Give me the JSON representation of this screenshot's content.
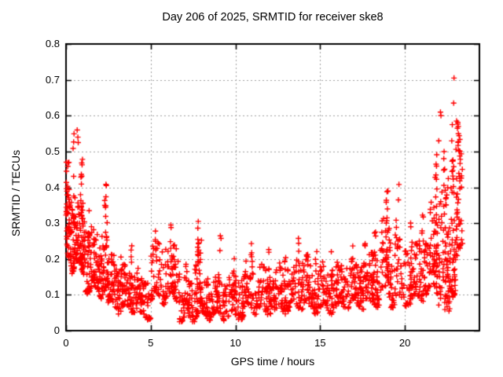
{
  "chart_data": {
    "type": "scatter",
    "title": "Day 206 of 2025, SRMTID for receiver ske8",
    "xlabel": "GPS time / hours",
    "ylabel": "SRMTID / TECUs",
    "xlim": [
      0,
      24.4
    ],
    "ylim": [
      0,
      0.8
    ],
    "xtick_values": [
      0,
      5,
      10,
      15,
      20
    ],
    "xtick_labels": [
      "0",
      "5",
      "10",
      "15",
      "20"
    ],
    "ytick_values": [
      0,
      0.1,
      0.2,
      0.3,
      0.4,
      0.5,
      0.6,
      0.7,
      0.8
    ],
    "ytick_labels": [
      "0",
      "0.1",
      "0.2",
      "0.3",
      "0.4",
      "0.5",
      "0.6",
      "0.7",
      "0.8"
    ],
    "grid": true,
    "grid_color": "#a0a0a0",
    "legend": "none",
    "marker": "plus",
    "marker_color": "#ff0000",
    "marker_size_px": 7,
    "axis_color": "#000000",
    "series_name": "SRMTID",
    "prng_seed": 20250206,
    "envelope_bins": [
      [
        0.0,
        0.35,
        55,
        0.2,
        0.4,
        0.47,
        6
      ],
      [
        0.35,
        0.75,
        60,
        0.18,
        0.36,
        0.56,
        8
      ],
      [
        0.75,
        1.15,
        60,
        0.15,
        0.35,
        0.48,
        10
      ],
      [
        1.15,
        1.65,
        55,
        0.12,
        0.3,
        0.35,
        4
      ],
      [
        1.65,
        2.1,
        45,
        0.1,
        0.25,
        0.3,
        3
      ],
      [
        2.1,
        2.45,
        38,
        0.12,
        0.3,
        0.41,
        8
      ],
      [
        2.45,
        3.0,
        48,
        0.07,
        0.2,
        0.24,
        3
      ],
      [
        3.0,
        3.6,
        52,
        0.06,
        0.18,
        0.22,
        3
      ],
      [
        3.6,
        4.3,
        55,
        0.06,
        0.17,
        0.25,
        4
      ],
      [
        4.3,
        5.0,
        50,
        0.04,
        0.14,
        0.18,
        3
      ],
      [
        5.0,
        5.9,
        60,
        0.09,
        0.24,
        0.285,
        6
      ],
      [
        5.9,
        6.7,
        60,
        0.09,
        0.24,
        0.3,
        6
      ],
      [
        6.7,
        7.6,
        55,
        0.03,
        0.14,
        0.22,
        4
      ],
      [
        7.6,
        8.0,
        45,
        0.05,
        0.24,
        0.31,
        8
      ],
      [
        8.0,
        8.7,
        50,
        0.04,
        0.14,
        0.18,
        3
      ],
      [
        8.7,
        9.6,
        60,
        0.04,
        0.15,
        0.27,
        4
      ],
      [
        9.6,
        10.5,
        65,
        0.04,
        0.15,
        0.22,
        4
      ],
      [
        10.5,
        11.6,
        70,
        0.06,
        0.19,
        0.255,
        6
      ],
      [
        11.6,
        12.5,
        65,
        0.05,
        0.17,
        0.23,
        4
      ],
      [
        12.5,
        13.3,
        60,
        0.06,
        0.18,
        0.25,
        4
      ],
      [
        13.3,
        14.3,
        65,
        0.07,
        0.2,
        0.29,
        6
      ],
      [
        14.3,
        15.3,
        70,
        0.06,
        0.18,
        0.23,
        4
      ],
      [
        15.3,
        16.3,
        70,
        0.06,
        0.18,
        0.24,
        5
      ],
      [
        16.3,
        17.2,
        65,
        0.07,
        0.19,
        0.24,
        4
      ],
      [
        17.2,
        18.0,
        60,
        0.07,
        0.2,
        0.25,
        4
      ],
      [
        18.0,
        18.55,
        50,
        0.08,
        0.22,
        0.28,
        5
      ],
      [
        18.55,
        19.15,
        55,
        0.1,
        0.3,
        0.39,
        10
      ],
      [
        19.15,
        19.95,
        50,
        0.08,
        0.24,
        0.365,
        5
      ],
      [
        19.95,
        20.85,
        60,
        0.08,
        0.24,
        0.31,
        5
      ],
      [
        20.85,
        21.5,
        55,
        0.1,
        0.26,
        0.33,
        5
      ],
      [
        21.5,
        22.0,
        50,
        0.13,
        0.35,
        0.5,
        10
      ],
      [
        22.0,
        22.5,
        50,
        0.1,
        0.38,
        0.5,
        6
      ],
      [
        22.35,
        22.65,
        15,
        0.05,
        0.11,
        0.11,
        0
      ],
      [
        22.5,
        23.0,
        60,
        0.13,
        0.45,
        0.53,
        10
      ],
      [
        23.0,
        23.4,
        45,
        0.19,
        0.52,
        0.585,
        8
      ]
    ],
    "outlier_points": [
      [
        0.66,
        0.56
      ],
      [
        0.7,
        0.54
      ],
      [
        0.72,
        0.525
      ],
      [
        0.97,
        0.478
      ],
      [
        0.02,
        0.47
      ],
      [
        0.03,
        0.445
      ],
      [
        2.38,
        0.405
      ],
      [
        7.5,
        0.03
      ],
      [
        19.62,
        0.365
      ],
      [
        19.65,
        0.408
      ],
      [
        22.0,
        0.53
      ],
      [
        22.1,
        0.61
      ],
      [
        22.13,
        0.6
      ],
      [
        22.88,
        0.635
      ],
      [
        22.9,
        0.705
      ],
      [
        22.8,
        0.575
      ],
      [
        23.05,
        0.585
      ],
      [
        23.1,
        0.565
      ],
      [
        23.15,
        0.57
      ]
    ]
  }
}
